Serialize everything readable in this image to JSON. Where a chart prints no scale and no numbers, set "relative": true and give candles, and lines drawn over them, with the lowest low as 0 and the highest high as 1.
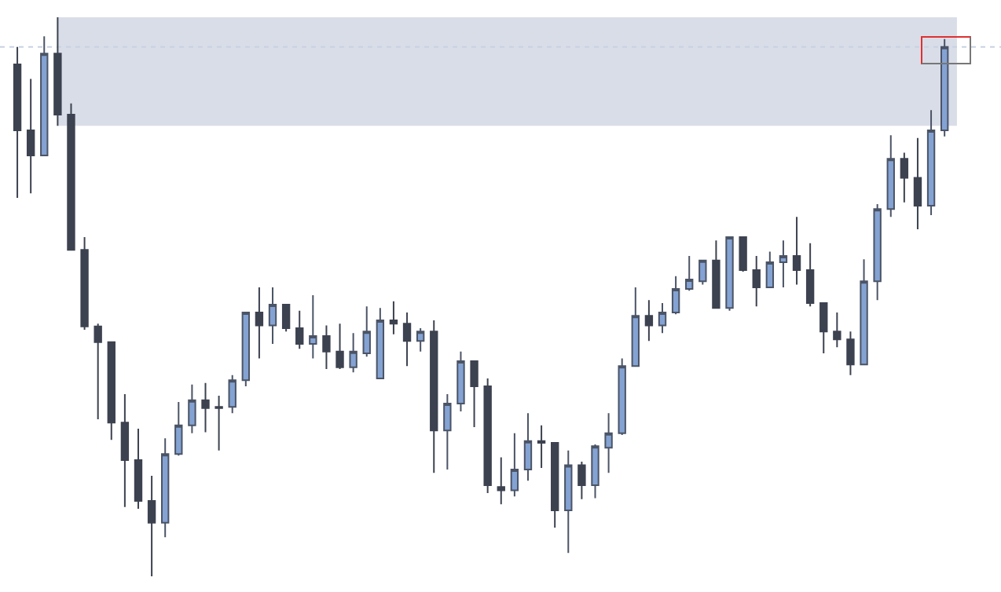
{
  "chart_data": {
    "type": "candlestick",
    "relative": true,
    "categories": [
      null,
      null,
      null,
      null,
      null,
      null,
      null,
      null,
      null,
      null,
      null,
      null,
      null,
      null,
      null,
      null,
      null,
      null,
      null,
      null,
      null,
      null,
      null,
      null,
      null,
      null,
      null,
      null,
      null,
      null,
      null,
      null,
      null,
      null,
      null,
      null,
      null,
      null,
      null,
      null,
      null,
      null,
      null,
      null,
      null,
      null,
      null,
      null,
      null,
      null,
      null,
      null,
      null,
      null,
      null,
      null,
      null,
      null,
      null,
      null,
      null,
      null,
      null,
      null,
      null,
      null,
      null,
      null,
      null,
      null
    ],
    "ohlc": [
      [
        0.916,
        0.947,
        0.677,
        0.798
      ],
      [
        0.798,
        0.89,
        0.685,
        0.753
      ],
      [
        0.753,
        0.966,
        0.753,
        0.935
      ],
      [
        0.935,
        1.0,
        0.806,
        0.826
      ],
      [
        0.826,
        0.846,
        0.584,
        0.584
      ],
      [
        0.584,
        0.607,
        0.441,
        0.447
      ],
      [
        0.447,
        0.452,
        0.281,
        0.419
      ],
      [
        0.419,
        0.419,
        0.244,
        0.275
      ],
      [
        0.275,
        0.326,
        0.124,
        0.208
      ],
      [
        0.208,
        0.264,
        0.121,
        0.135
      ],
      [
        0.135,
        0.18,
        0.0,
        0.096
      ],
      [
        0.096,
        0.247,
        0.07,
        0.219
      ],
      [
        0.219,
        0.312,
        0.216,
        0.27
      ],
      [
        0.27,
        0.343,
        0.256,
        0.315
      ],
      [
        0.315,
        0.346,
        0.258,
        0.301
      ],
      [
        0.303,
        0.323,
        0.225,
        0.301
      ],
      [
        0.303,
        0.36,
        0.292,
        0.351
      ],
      [
        0.351,
        0.472,
        0.34,
        0.472
      ],
      [
        0.472,
        0.517,
        0.39,
        0.449
      ],
      [
        0.449,
        0.517,
        0.416,
        0.486
      ],
      [
        0.486,
        0.486,
        0.438,
        0.444
      ],
      [
        0.444,
        0.475,
        0.407,
        0.416
      ],
      [
        0.416,
        0.503,
        0.39,
        0.43
      ],
      [
        0.43,
        0.449,
        0.371,
        0.402
      ],
      [
        0.402,
        0.452,
        0.371,
        0.374
      ],
      [
        0.374,
        0.435,
        0.365,
        0.402
      ],
      [
        0.399,
        0.483,
        0.393,
        0.438
      ],
      [
        0.354,
        0.48,
        0.354,
        0.458
      ],
      [
        0.458,
        0.492,
        0.433,
        0.452
      ],
      [
        0.452,
        0.472,
        0.376,
        0.421
      ],
      [
        0.421,
        0.444,
        0.402,
        0.438
      ],
      [
        0.438,
        0.458,
        0.185,
        0.261
      ],
      [
        0.261,
        0.326,
        0.191,
        0.309
      ],
      [
        0.309,
        0.402,
        0.295,
        0.385
      ],
      [
        0.385,
        0.385,
        0.267,
        0.34
      ],
      [
        0.34,
        0.354,
        0.149,
        0.163
      ],
      [
        0.16,
        0.213,
        0.129,
        0.154
      ],
      [
        0.154,
        0.256,
        0.143,
        0.191
      ],
      [
        0.191,
        0.292,
        0.171,
        0.242
      ],
      [
        0.242,
        0.27,
        0.194,
        0.239
      ],
      [
        0.239,
        0.239,
        0.087,
        0.118
      ],
      [
        0.118,
        0.225,
        0.042,
        0.199
      ],
      [
        0.199,
        0.205,
        0.138,
        0.163
      ],
      [
        0.163,
        0.236,
        0.14,
        0.233
      ],
      [
        0.23,
        0.292,
        0.185,
        0.256
      ],
      [
        0.256,
        0.39,
        0.253,
        0.376
      ],
      [
        0.376,
        0.517,
        0.376,
        0.466
      ],
      [
        0.466,
        0.494,
        0.421,
        0.449
      ],
      [
        0.449,
        0.489,
        0.435,
        0.472
      ],
      [
        0.472,
        0.537,
        0.469,
        0.514
      ],
      [
        0.514,
        0.573,
        0.511,
        0.531
      ],
      [
        0.528,
        0.565,
        0.522,
        0.565
      ],
      [
        0.565,
        0.601,
        0.48,
        0.48
      ],
      [
        0.48,
        0.607,
        0.475,
        0.607
      ],
      [
        0.607,
        0.607,
        0.545,
        0.548
      ],
      [
        0.548,
        0.573,
        0.483,
        0.517
      ],
      [
        0.517,
        0.581,
        0.517,
        0.562
      ],
      [
        0.562,
        0.601,
        0.517,
        0.573
      ],
      [
        0.573,
        0.643,
        0.522,
        0.548
      ],
      [
        0.548,
        0.596,
        0.483,
        0.489
      ],
      [
        0.489,
        0.489,
        0.399,
        0.438
      ],
      [
        0.438,
        0.472,
        0.41,
        0.424
      ],
      [
        0.424,
        0.438,
        0.36,
        0.379
      ],
      [
        0.379,
        0.567,
        0.379,
        0.528
      ],
      [
        0.528,
        0.666,
        0.494,
        0.657
      ],
      [
        0.657,
        0.789,
        0.643,
        0.747
      ],
      [
        0.747,
        0.758,
        0.669,
        0.713
      ],
      [
        0.713,
        0.784,
        0.621,
        0.663
      ],
      [
        0.663,
        0.834,
        0.646,
        0.798
      ],
      [
        0.798,
        0.961,
        0.787,
        0.947
      ]
    ],
    "bands": [
      {
        "axis": "y",
        "from": 0.806,
        "to": 1.0,
        "color": "#d9dde8"
      }
    ],
    "ref_lines": [
      {
        "axis": "y",
        "value": 0.947,
        "color": "#c9d2e2",
        "line_style": "dotted"
      }
    ]
  }
}
